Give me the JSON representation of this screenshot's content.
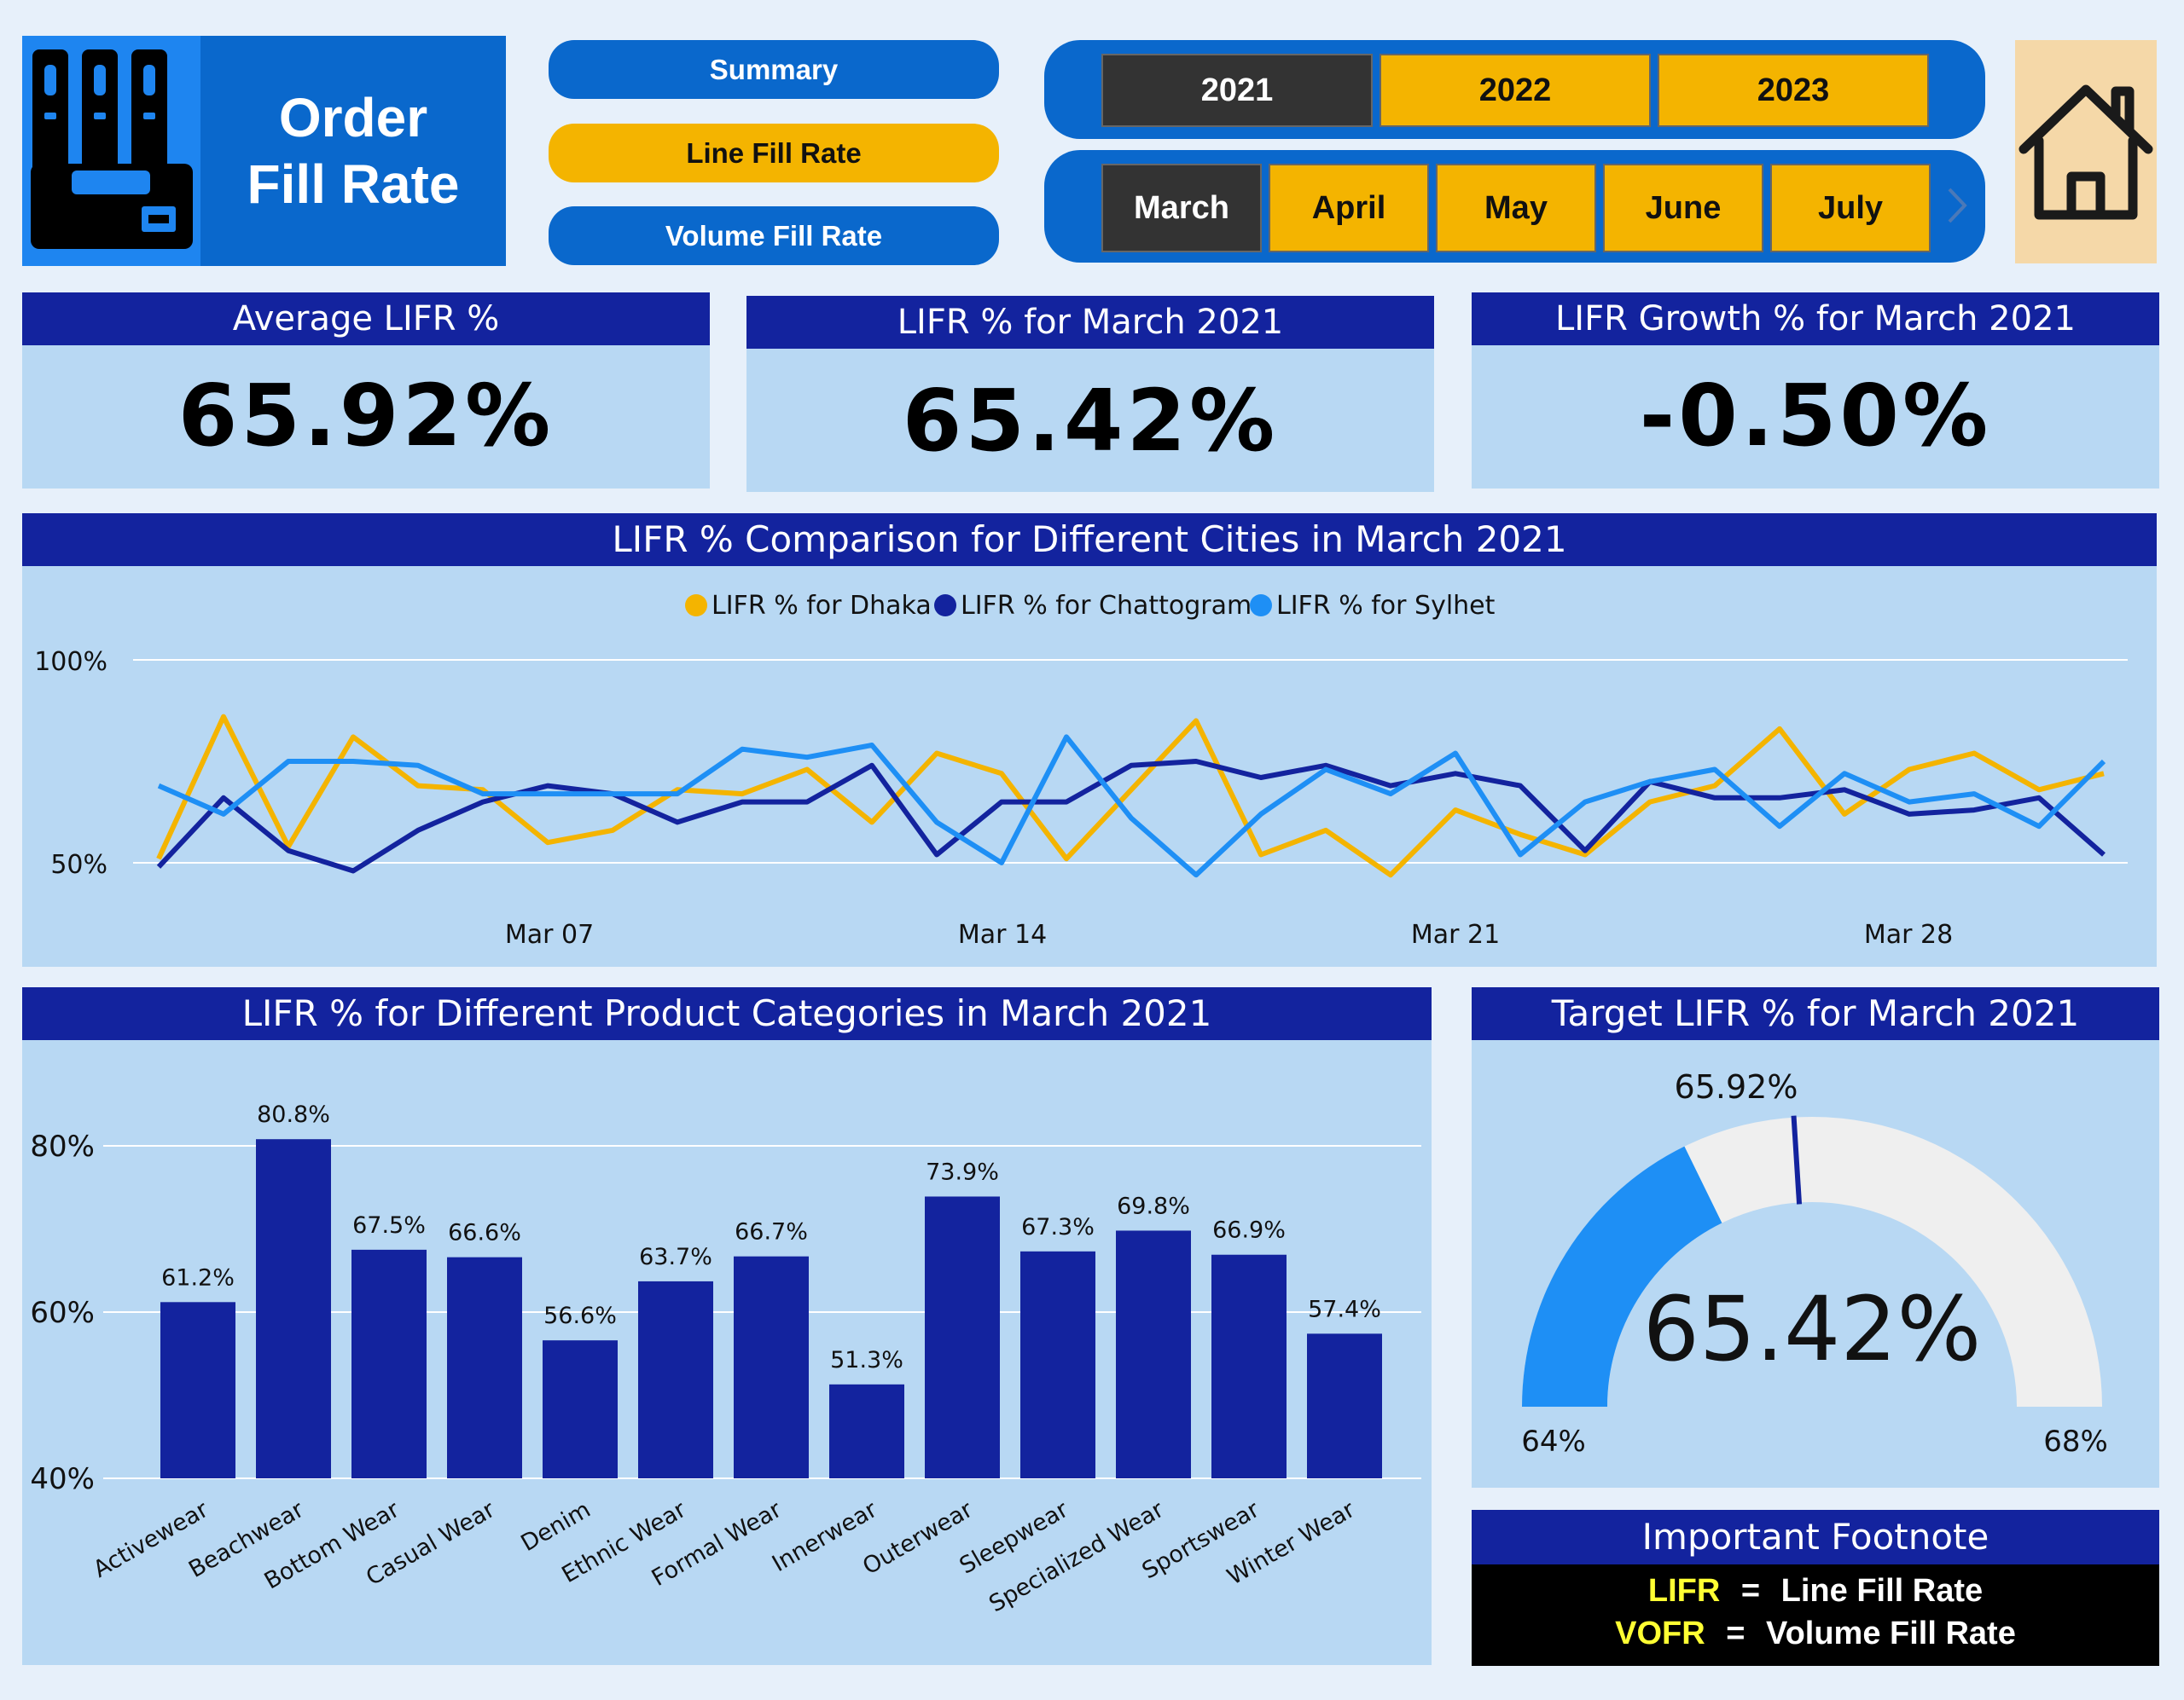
{
  "logo": {
    "title_line1": "Order",
    "title_line2": "Fill Rate",
    "icon": "binders-tray-icon"
  },
  "nav": {
    "summary": "Summary",
    "line_fill_rate": "Line Fill Rate",
    "volume_fill_rate": "Volume Fill Rate"
  },
  "years": [
    "2021",
    "2022",
    "2023"
  ],
  "selected_year": "2021",
  "months": [
    "March",
    "April",
    "May",
    "June",
    "July"
  ],
  "selected_month": "March",
  "home_icon": "home-icon",
  "kpis": {
    "avg_label": "Average LIFR %",
    "avg_value": "65.92%",
    "month_label": "LIFR % for March 2021",
    "month_value": "65.42%",
    "growth_label": "LIFR Growth % for March 2021",
    "growth_value": "-0.50%"
  },
  "colors": {
    "dark_blue": "#13239e",
    "mid_blue": "#0a68cc",
    "light_blue": "#1e8ff5",
    "yellow": "#f4b400",
    "panel": "#b8d8f3"
  },
  "line_chart": {
    "title": "LIFR % Comparison for Different Cities in March 2021",
    "legend": [
      "LIFR % for Dhaka",
      "LIFR % for Chattogram",
      "LIFR % for Sylhet"
    ],
    "y_ticks": [
      "100%",
      "50%"
    ],
    "x_ticks": [
      "Mar 07",
      "Mar 14",
      "Mar 21",
      "Mar 28"
    ]
  },
  "bar_chart": {
    "title": "LIFR % for Different Product Categories in March 2021",
    "y_ticks": [
      "80%",
      "60%",
      "40%"
    ]
  },
  "gauge": {
    "title": "Target LIFR % for March 2021",
    "value_label": "65.42%",
    "target_label": "65.92%",
    "min_label": "64%",
    "max_label": "68%"
  },
  "footnote": {
    "title": "Important Footnote",
    "line1_key": "LIFR",
    "line1_eq": "=",
    "line1_val": "Line Fill Rate",
    "line2_key": "VOFR",
    "line2_eq": "=",
    "line2_val": "Volume Fill Rate"
  },
  "chart_data": [
    {
      "type": "line",
      "title": "LIFR % Comparison for Different Cities in March 2021",
      "x": [
        "Mar 01",
        "Mar 02",
        "Mar 03",
        "Mar 04",
        "Mar 05",
        "Mar 06",
        "Mar 07",
        "Mar 08",
        "Mar 09",
        "Mar 10",
        "Mar 11",
        "Mar 12",
        "Mar 13",
        "Mar 14",
        "Mar 15",
        "Mar 16",
        "Mar 17",
        "Mar 18",
        "Mar 19",
        "Mar 20",
        "Mar 21",
        "Mar 22",
        "Mar 23",
        "Mar 24",
        "Mar 25",
        "Mar 26",
        "Mar 27",
        "Mar 28",
        "Mar 29",
        "Mar 30",
        "Mar 31"
      ],
      "ylim": [
        45,
        100
      ],
      "y_ticks": [
        50,
        100
      ],
      "legend_position": "top",
      "grid": true,
      "series": [
        {
          "name": "LIFR % for Dhaka",
          "color": "#f4b400",
          "values": [
            51,
            86,
            54,
            81,
            69,
            68,
            55,
            58,
            68,
            67,
            73,
            60,
            77,
            72,
            51,
            68,
            85,
            52,
            58,
            47,
            63,
            57,
            52,
            65,
            69,
            83,
            62,
            73,
            77,
            68,
            72
          ]
        },
        {
          "name": "LIFR % for Chattogram",
          "color": "#13239e",
          "values": [
            49,
            66,
            53,
            48,
            58,
            65,
            69,
            67,
            60,
            65,
            65,
            74,
            52,
            65,
            65,
            74,
            75,
            71,
            74,
            69,
            72,
            69,
            53,
            70,
            66,
            66,
            68,
            62,
            63,
            66,
            52
          ]
        },
        {
          "name": "LIFR % for Sylhet",
          "color": "#1e8ff5",
          "values": [
            69,
            62,
            75,
            75,
            74,
            67,
            67,
            67,
            67,
            78,
            76,
            79,
            60,
            50,
            81,
            61,
            47,
            62,
            73,
            67,
            77,
            52,
            65,
            70,
            73,
            59,
            72,
            65,
            67,
            59,
            75
          ]
        }
      ]
    },
    {
      "type": "bar",
      "title": "LIFR % for Different Product Categories in March 2021",
      "categories": [
        "Activewear",
        "Beachwear",
        "Bottom Wear",
        "Casual Wear",
        "Denim",
        "Ethnic Wear",
        "Formal Wear",
        "Innerwear",
        "Outerwear",
        "Sleepwear",
        "Specialized Wear",
        "Sportswear",
        "Winter Wear"
      ],
      "values": [
        61.2,
        80.8,
        67.5,
        66.6,
        56.6,
        63.7,
        66.7,
        51.3,
        73.9,
        67.3,
        69.8,
        66.9,
        57.4
      ],
      "data_labels": [
        "61.2%",
        "80.8%",
        "67.5%",
        "66.6%",
        "56.6%",
        "63.7%",
        "66.7%",
        "51.3%",
        "73.9%",
        "67.3%",
        "69.8%",
        "66.9%",
        "57.4%"
      ],
      "ylim": [
        40,
        85
      ],
      "y_ticks": [
        40,
        60,
        80
      ],
      "color": "#13239e",
      "grid": true
    },
    {
      "type": "gauge",
      "title": "Target LIFR % for March 2021",
      "value": 65.42,
      "target": 65.92,
      "min": 64,
      "max": 68
    }
  ]
}
